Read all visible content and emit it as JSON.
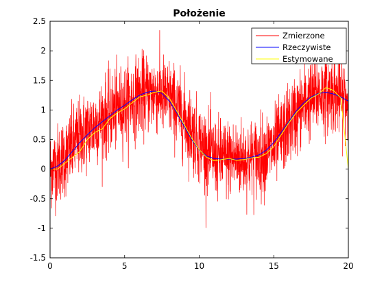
{
  "chart_data": {
    "type": "line",
    "title": "Położenie",
    "xlabel": "",
    "ylabel": "",
    "xlim": [
      0,
      20
    ],
    "ylim": [
      -1.5,
      2.5
    ],
    "xticks": [
      0,
      5,
      10,
      15,
      20
    ],
    "yticks": [
      -1.5,
      -1,
      -0.5,
      0,
      0.5,
      1,
      1.5,
      2,
      2.5
    ],
    "xtick_labels": [
      "0",
      "5",
      "10",
      "15",
      "20"
    ],
    "ytick_labels": [
      "-1.5",
      "-1",
      "-0.5",
      "0",
      "0.5",
      "1",
      "1.5",
      "2",
      "2.5"
    ],
    "grid": false,
    "legend_position": "top-right",
    "series": [
      {
        "name": "Zmierzone",
        "color": "#ff0000",
        "style": "noisy",
        "noise_amplitude": 0.55,
        "x": [
          0,
          1,
          2,
          3,
          4,
          5,
          6,
          7,
          8,
          9,
          10,
          11,
          12,
          13,
          14,
          15,
          16,
          17,
          18,
          19,
          20
        ],
        "y": [
          0.0,
          0.2,
          0.55,
          0.75,
          0.95,
          1.1,
          1.25,
          1.3,
          1.2,
          0.85,
          0.45,
          0.2,
          0.18,
          0.17,
          0.2,
          0.35,
          0.75,
          1.1,
          1.28,
          1.3,
          1.15
        ]
      },
      {
        "name": "Rzeczywiste",
        "color": "#0000ff",
        "x": [
          0,
          0.5,
          1,
          1.5,
          2,
          2.5,
          3,
          3.5,
          4,
          4.5,
          5,
          5.5,
          6,
          6.5,
          7,
          7.5,
          8,
          8.5,
          9,
          9.5,
          10,
          10.5,
          11,
          11.5,
          12,
          12.5,
          13,
          13.5,
          14,
          14.5,
          15,
          15.5,
          16,
          16.5,
          17,
          17.5,
          18,
          18.5,
          19,
          19.5,
          20
        ],
        "y": [
          0.0,
          0.05,
          0.15,
          0.3,
          0.45,
          0.58,
          0.7,
          0.8,
          0.9,
          1.0,
          1.08,
          1.17,
          1.25,
          1.3,
          1.32,
          1.28,
          1.15,
          0.95,
          0.72,
          0.5,
          0.32,
          0.22,
          0.18,
          0.17,
          0.17,
          0.17,
          0.18,
          0.2,
          0.24,
          0.32,
          0.45,
          0.62,
          0.8,
          0.98,
          1.12,
          1.22,
          1.28,
          1.3,
          1.27,
          1.22,
          1.15
        ]
      },
      {
        "name": "Estymowane",
        "color": "#ffff00",
        "x": [
          0,
          0.5,
          1,
          1.5,
          2,
          2.5,
          3,
          3.5,
          4,
          4.5,
          5,
          5.5,
          6,
          6.5,
          7,
          7.5,
          8,
          8.5,
          9,
          9.5,
          10,
          10.5,
          11,
          11.5,
          12,
          12.5,
          13,
          13.5,
          14,
          14.5,
          15,
          15.5,
          16,
          16.5,
          17,
          17.5,
          18,
          18.5,
          19,
          19.5,
          20
        ],
        "y": [
          0.0,
          0.0,
          0.1,
          0.2,
          0.3,
          0.5,
          0.62,
          0.68,
          0.85,
          0.95,
          1.02,
          1.12,
          1.22,
          1.25,
          1.3,
          1.32,
          1.2,
          0.98,
          0.75,
          0.52,
          0.33,
          0.2,
          0.14,
          0.16,
          0.18,
          0.15,
          0.16,
          0.19,
          0.2,
          0.26,
          0.38,
          0.58,
          0.78,
          0.95,
          1.08,
          1.2,
          1.27,
          1.38,
          1.33,
          1.2,
          0.0
        ]
      }
    ]
  }
}
